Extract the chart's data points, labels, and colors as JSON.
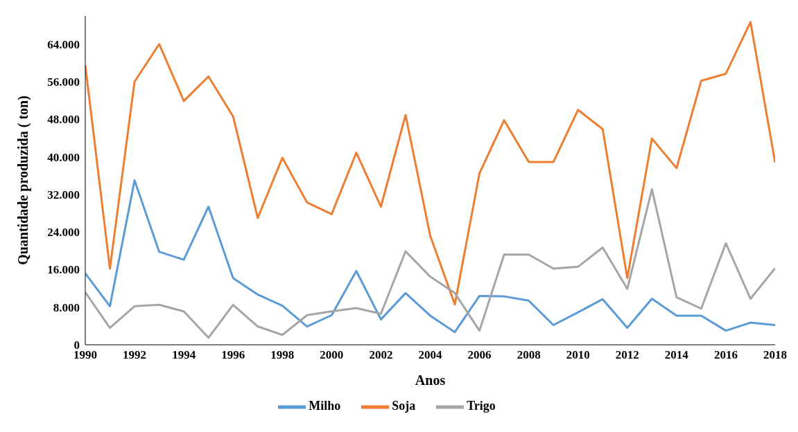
{
  "chart_data": {
    "type": "line",
    "xlabel": "Anos",
    "ylabel": "Quantidade  produzida  ( ton)",
    "x": [
      1990,
      1991,
      1992,
      1993,
      1994,
      1995,
      1996,
      1997,
      1998,
      1999,
      2000,
      2001,
      2002,
      2003,
      2004,
      2005,
      2006,
      2007,
      2008,
      2009,
      2010,
      2011,
      2012,
      2013,
      2014,
      2015,
      2016,
      2017,
      2018
    ],
    "series": [
      {
        "name": "Milho",
        "color": "#5b9bd5",
        "values": [
          15200,
          8200,
          35000,
          19800,
          18100,
          29400,
          14200,
          10700,
          8300,
          3900,
          6300,
          15700,
          5400,
          11000,
          6200,
          2700,
          10400,
          10300,
          9400,
          4200,
          6900,
          9700,
          3600,
          9800,
          6200,
          6200,
          3000,
          4700,
          4200
        ]
      },
      {
        "name": "Soja",
        "color": "#ed7d31",
        "values": [
          59500,
          16200,
          56000,
          64000,
          51900,
          57100,
          48600,
          27000,
          39800,
          30300,
          27800,
          40900,
          29400,
          48900,
          23200,
          8600,
          36500,
          47800,
          38900,
          38900,
          50000,
          45900,
          14200,
          43900,
          37600,
          56200,
          57700,
          68700,
          38800
        ]
      },
      {
        "name": "Trigo",
        "color": "#a5a5a5",
        "values": [
          11200,
          3600,
          8200,
          8500,
          7100,
          1500,
          8500,
          3900,
          2100,
          6300,
          7100,
          7800,
          6600,
          19900,
          14500,
          11000,
          3000,
          19200,
          19200,
          16200,
          16600,
          20700,
          11900,
          33100,
          10100,
          7700,
          21600,
          9800,
          16300
        ]
      }
    ],
    "xlim": [
      1990,
      2018
    ],
    "xticks": [
      1990,
      1992,
      1994,
      1996,
      1998,
      2000,
      2002,
      2004,
      2006,
      2008,
      2010,
      2012,
      2014,
      2016,
      2018
    ],
    "ylim": [
      0,
      70000
    ],
    "yticks": [
      0,
      {
        "value": 8000,
        "label": "8.000"
      },
      {
        "value": 16000,
        "label": "16.000"
      },
      {
        "value": 24000,
        "label": "24.000"
      },
      {
        "value": 32000,
        "label": "32.000"
      },
      {
        "value": 40000,
        "label": "40.000"
      },
      {
        "value": 48000,
        "label": "48.000"
      },
      {
        "value": 56000,
        "label": "56.000"
      },
      {
        "value": 64000,
        "label": "64.000"
      }
    ],
    "grid": false,
    "legend": "bottom",
    "marker": "none",
    "line_style": "solid"
  }
}
